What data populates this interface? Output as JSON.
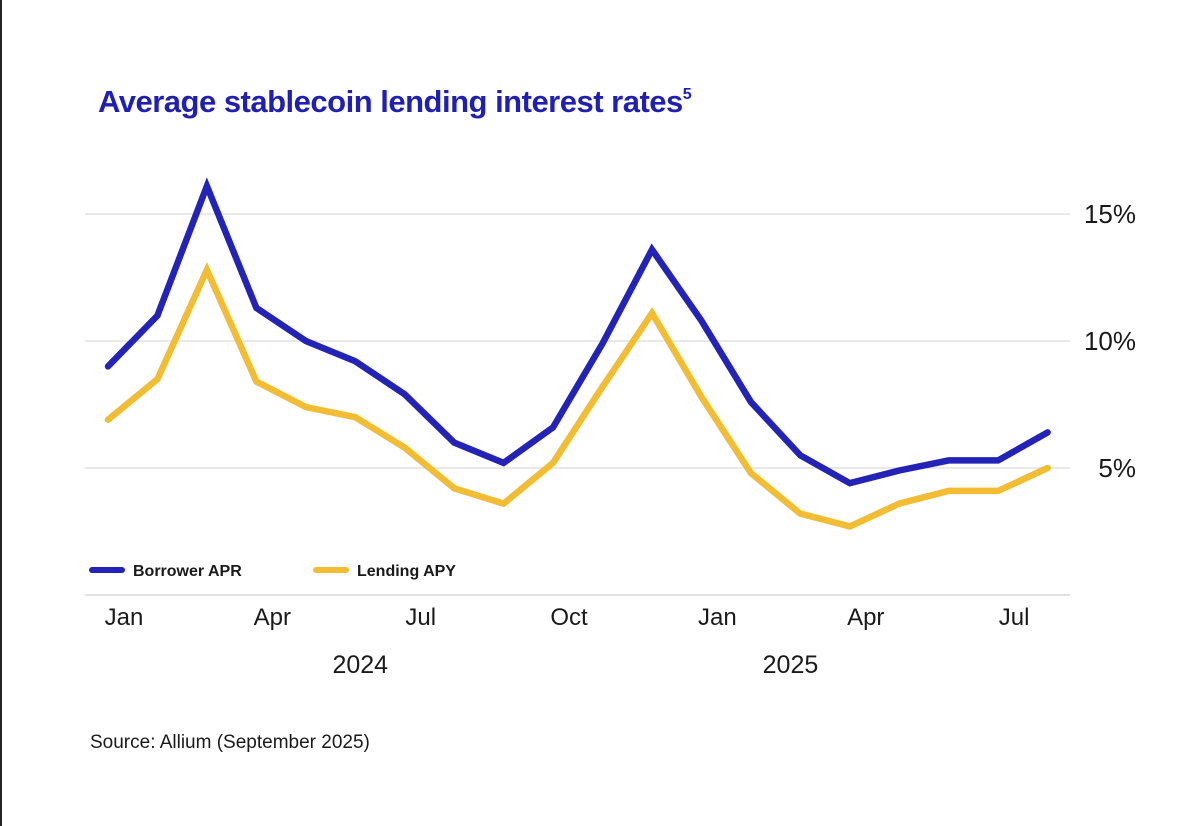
{
  "page": {
    "title": "Average stablecoin lending interest rates",
    "title_superscript": "5",
    "source": "Source: Allium (September 2025)"
  },
  "chart_data": {
    "type": "line",
    "title": "Average stablecoin lending interest rates",
    "xlabel": "",
    "ylabel": "",
    "x": [
      "2024-01",
      "2024-02",
      "2024-03",
      "2024-04",
      "2024-05",
      "2024-06",
      "2024-07",
      "2024-08",
      "2024-09",
      "2024-10",
      "2024-11",
      "2024-12",
      "2025-01",
      "2025-02",
      "2025-03",
      "2025-04",
      "2025-05",
      "2025-06",
      "2025-07",
      "2025-08"
    ],
    "x_tick_labels": [
      {
        "index": 0,
        "label": "Jan"
      },
      {
        "index": 3,
        "label": "Apr"
      },
      {
        "index": 6,
        "label": "Jul"
      },
      {
        "index": 9,
        "label": "Oct"
      },
      {
        "index": 12,
        "label": "Jan"
      },
      {
        "index": 15,
        "label": "Apr"
      },
      {
        "index": 18,
        "label": "Jul"
      }
    ],
    "year_labels": [
      {
        "center_index": 5,
        "label": "2024"
      },
      {
        "center_index": 13.7,
        "label": "2025"
      }
    ],
    "y_ticks": [
      {
        "value": 5,
        "label": "5%"
      },
      {
        "value": 10,
        "label": "10%"
      },
      {
        "value": 15,
        "label": "15%"
      }
    ],
    "ylim": [
      0,
      15
    ],
    "grid": true,
    "legend_position": "bottom-left",
    "series": [
      {
        "name": "Borrower APR",
        "color": "#2323b8",
        "values": [
          9.0,
          11.0,
          16.1,
          11.3,
          10.0,
          9.2,
          7.9,
          6.0,
          5.2,
          6.6,
          9.9,
          13.6,
          10.8,
          7.6,
          5.5,
          4.4,
          4.9,
          5.3,
          5.3,
          6.4
        ]
      },
      {
        "name": "Lending APY",
        "color": "#f2bd33",
        "values": [
          6.9,
          8.5,
          12.8,
          8.4,
          7.4,
          7.0,
          5.8,
          4.2,
          3.6,
          5.2,
          8.2,
          11.1,
          7.8,
          4.8,
          3.2,
          2.7,
          3.6,
          4.1,
          4.1,
          5.0
        ]
      }
    ]
  }
}
